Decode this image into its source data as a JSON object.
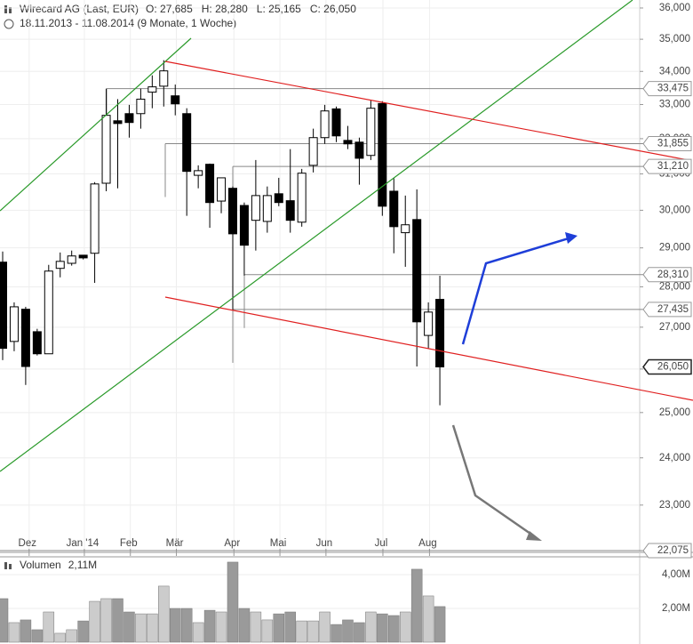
{
  "chart_data": [
    {
      "type": "candlestick",
      "title": "Wirecard AG (Last, EUR)",
      "ohlc_labels": [
        "O: 27,685",
        "H: 28,280",
        "L: 25,165",
        "C: 26,050"
      ],
      "subtitle": "18.11.2013 - 11.08.2014 (9 Monate, 1 Woche)",
      "open": [
        28630,
        26655,
        27440,
        26890,
        26360,
        28470,
        28600,
        28810,
        28860,
        30740,
        32520,
        32730,
        32730,
        33370,
        33550,
        33260,
        32730,
        30960,
        31270,
        30250,
        30600,
        30130,
        29730,
        29700,
        30450,
        30260,
        29680,
        31240,
        32030,
        32870,
        31950,
        31900,
        31520,
        33030,
        30520,
        29400,
        29750,
        26800,
        27685
      ],
      "high": [
        28905,
        27610,
        27500,
        26960,
        28560,
        28880,
        28930,
        28810,
        30770,
        33475,
        33160,
        32990,
        33475,
        33880,
        34345,
        33600,
        32890,
        31240,
        31290,
        30890,
        30650,
        30210,
        31390,
        30650,
        30890,
        31700,
        31140,
        32290,
        32990,
        32940,
        32370,
        32030,
        33130,
        33100,
        30890,
        30400,
        30570,
        27610,
        28280
      ],
      "low": [
        26210,
        26421,
        25630,
        26320,
        26360,
        28240,
        28540,
        28700,
        28100,
        30520,
        30600,
        32030,
        32290,
        32890,
        32940,
        32680,
        29850,
        30600,
        29530,
        29920,
        27410,
        28285,
        28930,
        29400,
        30110,
        29400,
        29560,
        31040,
        31850,
        31900,
        31700,
        30700,
        31390,
        29850,
        28860,
        28510,
        26060,
        26490,
        25165
      ],
      "close": [
        26490,
        27500,
        26060,
        26360,
        28400,
        28650,
        28790,
        28740,
        30720,
        32680,
        32440,
        32470,
        33160,
        33530,
        34016,
        33020,
        31070,
        31090,
        30210,
        30890,
        29370,
        29070,
        30400,
        30400,
        30210,
        29730,
        31020,
        32030,
        32810,
        32080,
        31850,
        31440,
        32890,
        30110,
        29560,
        29610,
        27130,
        27370,
        26050
      ],
      "up_color": "#ffffff",
      "down_color": "#000000",
      "log_scale": true,
      "ylim": [
        22040,
        36260
      ],
      "yticks": [
        {
          "value": 23000,
          "label": "23,000"
        },
        {
          "value": 24000,
          "label": "24,000"
        },
        {
          "value": 25000,
          "label": "25,000"
        },
        {
          "value": 26000,
          "label": "26,000"
        },
        {
          "value": 27000,
          "label": "27,000"
        },
        {
          "value": 28000,
          "label": "28,000"
        },
        {
          "value": 29000,
          "label": "29,000"
        },
        {
          "value": 30000,
          "label": "30,000"
        },
        {
          "value": 31000,
          "label": "31,000"
        },
        {
          "value": 32000,
          "label": "32,000"
        },
        {
          "value": 33000,
          "label": "33,000"
        },
        {
          "value": 34000,
          "label": "34,000"
        },
        {
          "value": 35000,
          "label": "35,000"
        },
        {
          "value": 36000,
          "label": "36,000"
        }
      ],
      "xlim": [
        -0.2317,
        55.37
      ],
      "xticks": [
        {
          "value": 2.3,
          "label": "Dez"
        },
        {
          "value": 7.1,
          "label": "Jan '14"
        },
        {
          "value": 11.1,
          "label": "Feb"
        },
        {
          "value": 15.1,
          "label": "Mär"
        },
        {
          "value": 20.1,
          "label": "Apr"
        },
        {
          "value": 24.1,
          "label": "Mai"
        },
        {
          "value": 28.1,
          "label": "Jun"
        },
        {
          "value": 33.05,
          "label": "Jul"
        },
        {
          "value": 37.1,
          "label": "Aug"
        }
      ],
      "levels": [
        {
          "value": 33475,
          "label": "33,475"
        },
        {
          "value": 31855,
          "label": "31,855"
        },
        {
          "value": 31210,
          "label": "31,210"
        },
        {
          "value": 28310,
          "label": "28,310"
        },
        {
          "value": 27435,
          "label": "27,435"
        },
        {
          "value": 22075,
          "label": "22,075"
        }
      ],
      "last": {
        "value": 26050,
        "label": "26,050"
      },
      "grid": true
    },
    {
      "type": "bar",
      "title": "Volumen",
      "last_label": "2,11M",
      "values": [
        2.58,
        1.16,
        1.32,
        0.74,
        1.79,
        0.53,
        0.74,
        1.26,
        2.42,
        2.58,
        2.58,
        1.79,
        1.68,
        1.68,
        3.32,
        2.0,
        2.0,
        1.16,
        1.89,
        1.79,
        4.74,
        2.0,
        1.79,
        1.32,
        1.68,
        1.79,
        1.26,
        1.26,
        1.79,
        1.05,
        1.32,
        1.16,
        1.79,
        1.68,
        1.58,
        1.79,
        4.32,
        2.74,
        2.11
      ],
      "up_color": "#cccccc",
      "down_color": "#9a9a9a",
      "ylim": [
        0,
        5
      ],
      "yticks": [
        {
          "value": 2,
          "label": "2,00M"
        },
        {
          "value": 4,
          "label": "4,00M"
        }
      ]
    }
  ]
}
